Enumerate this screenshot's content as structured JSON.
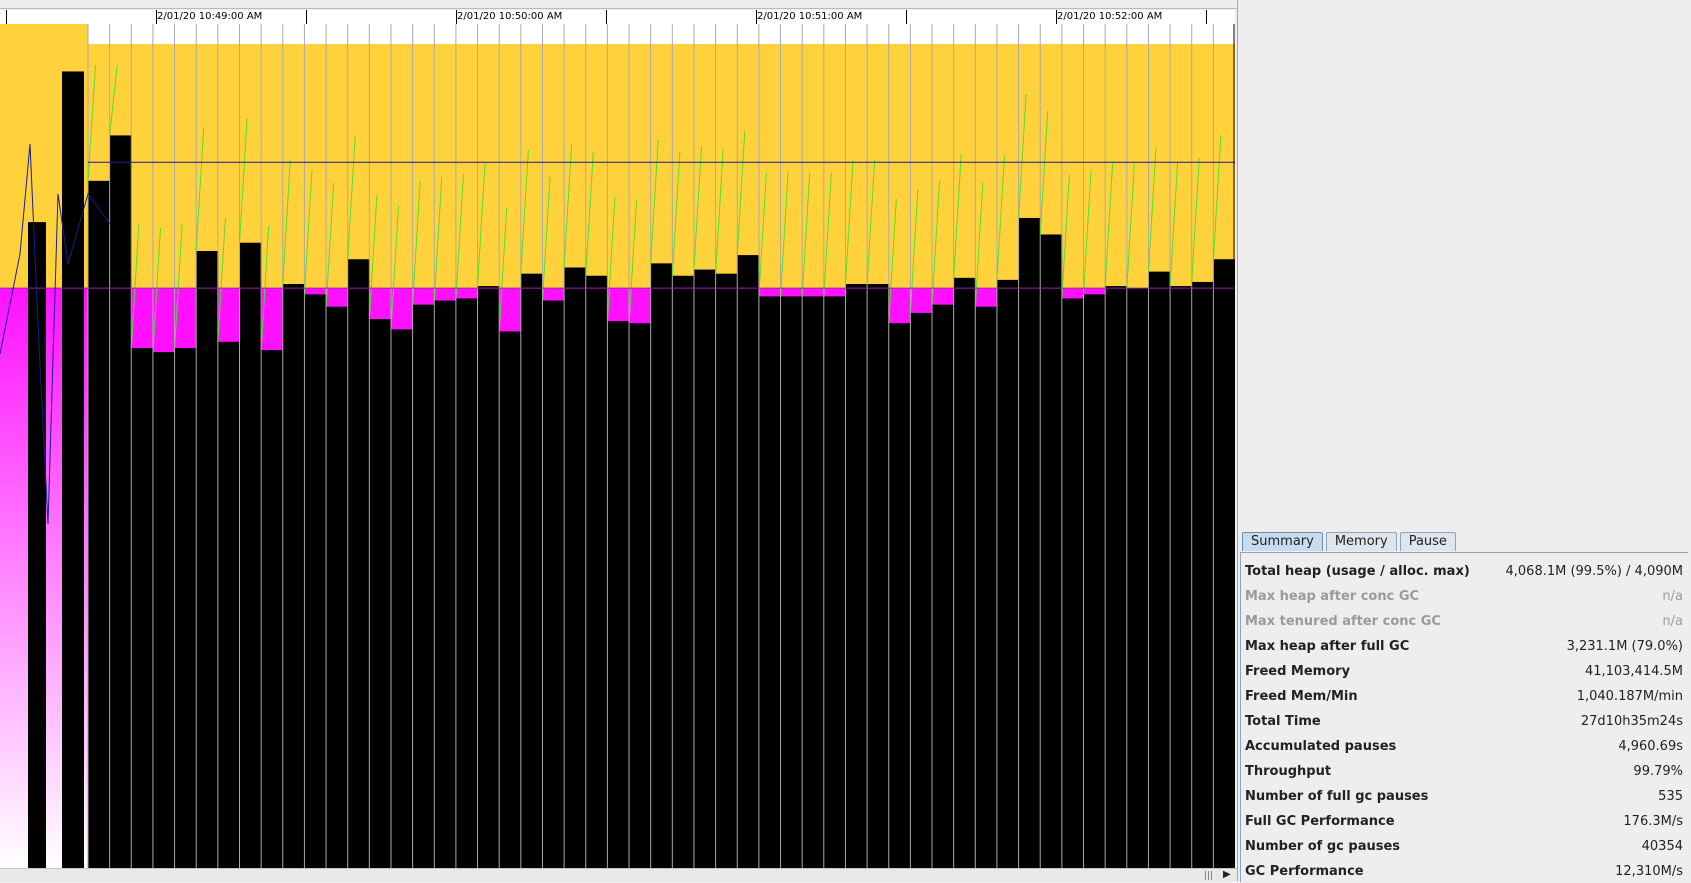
{
  "timeline": {
    "labels": [
      "2/01/20 10:49:00 AM",
      "2/01/20 10:50:00 AM",
      "2/01/20 10:51:00 AM",
      "2/01/20 10:52:00 AM"
    ]
  },
  "colors": {
    "young": "#ffd23c",
    "tenured": "#ff11ff",
    "used": "#000000",
    "gc_line": "#aaaaaa",
    "heap_line": "#1c1c8c",
    "tenured_line": "#a020a0",
    "alloc_line": "#55dd33",
    "background": "#ffffff"
  },
  "chart_data": {
    "type": "bar",
    "title": "",
    "xlabel": "",
    "ylabel": "",
    "ylim": [
      0,
      4090
    ],
    "units": "MB",
    "tenured_capacity": 2810,
    "young_capacity": 1280,
    "total_capacity": 4090,
    "note_series": "heap used (black) at each GC cycle across the time window",
    "series": [
      {
        "name": "",
        "values": [
          3330,
          3550,
          2520,
          2500,
          2520,
          2990,
          2550,
          3030,
          2510,
          2830,
          2780,
          2720,
          2950,
          2660,
          2610,
          2730,
          2750,
          2760,
          2820,
          2600,
          2880,
          2750,
          2910,
          2870,
          2650,
          2640,
          2930,
          2870,
          2900,
          2880,
          2970,
          2770,
          2770,
          2770,
          2770,
          2830,
          2830,
          2640,
          2690,
          2730,
          2860,
          2720,
          2850,
          3150,
          3070,
          2760,
          2780,
          2820,
          2810,
          2890,
          2820,
          2840,
          2950
        ]
      }
    ]
  },
  "tabs": [
    {
      "label": "Summary",
      "active": true
    },
    {
      "label": "Memory",
      "active": false
    },
    {
      "label": "Pause",
      "active": false
    }
  ],
  "summary": [
    {
      "key": "Total heap (usage / alloc. max)",
      "value": "4,068.1M (99.5%) / 4,090M",
      "dim": false
    },
    {
      "key": "Max heap after conc GC",
      "value": "n/a",
      "dim": true
    },
    {
      "key": "Max tenured after conc GC",
      "value": "n/a",
      "dim": true
    },
    {
      "key": "Max heap after full GC",
      "value": "3,231.1M (79.0%)",
      "dim": false
    },
    {
      "key": "Freed Memory",
      "value": "41,103,414.5M",
      "dim": false
    },
    {
      "key": "Freed Mem/Min",
      "value": "1,040.187M/min",
      "dim": false
    },
    {
      "key": "Total Time",
      "value": "27d10h35m24s",
      "dim": false
    },
    {
      "key": "Accumulated pauses",
      "value": "4,960.69s",
      "dim": false
    },
    {
      "key": "Throughput",
      "value": "99.79%",
      "dim": false
    },
    {
      "key": "Number of full gc pauses",
      "value": "535",
      "dim": false
    },
    {
      "key": "Full GC Performance",
      "value": "176.3M/s",
      "dim": false
    },
    {
      "key": "Number of gc pauses",
      "value": "40354",
      "dim": false
    },
    {
      "key": "GC Performance",
      "value": "12,310M/s",
      "dim": false
    }
  ]
}
